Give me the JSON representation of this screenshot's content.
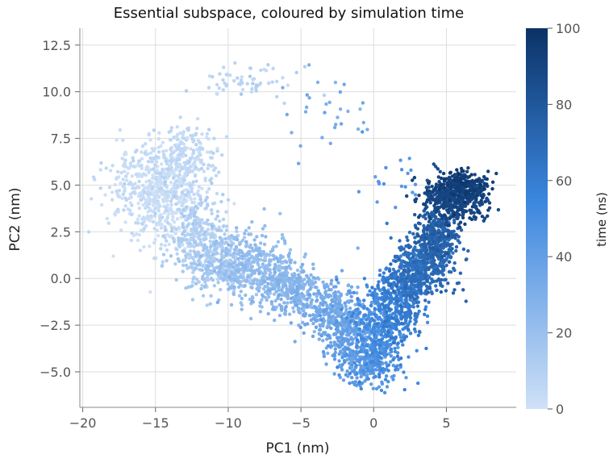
{
  "chart_data": {
    "type": "scatter",
    "title": "Essential subspace, coloured by simulation time",
    "xlabel": "PC1 (nm)",
    "ylabel": "PC2 (nm)",
    "xlim": [
      -20.2,
      9.8
    ],
    "ylim": [
      -6.9,
      13.4
    ],
    "x_ticks": [
      -20,
      -15,
      -10,
      -5,
      0,
      5
    ],
    "x_tick_labels": [
      "−20",
      "−15",
      "−10",
      "−5",
      "0",
      "5"
    ],
    "y_ticks": [
      -5.0,
      -2.5,
      0.0,
      2.5,
      5.0,
      7.5,
      10.0,
      12.5
    ],
    "y_tick_labels": [
      "−5.0",
      "−2.5",
      "0.0",
      "2.5",
      "5.0",
      "7.5",
      "10.0",
      "12.5"
    ],
    "grid": true,
    "colorbar": {
      "label": "time (ns)",
      "range": [
        0,
        100
      ],
      "ticks": [
        0,
        20,
        40,
        60,
        80,
        100
      ],
      "tick_labels": [
        "0",
        "20",
        "40",
        "60",
        "80",
        "100"
      ],
      "color_low": "#cfe1f7",
      "color_high": "#0b3266"
    },
    "clusters": [
      {
        "x": -14.5,
        "y": 4.5,
        "sx": 1.5,
        "sy": 1.3,
        "t": 2,
        "n": 500
      },
      {
        "x": -13.0,
        "y": 6.5,
        "sx": 1.1,
        "sy": 0.9,
        "t": 5,
        "n": 220
      },
      {
        "x": -16.8,
        "y": 5.2,
        "sx": 1.1,
        "sy": 1.0,
        "t": 4,
        "n": 90
      },
      {
        "x": -12.0,
        "y": 2.2,
        "sx": 1.0,
        "sy": 1.0,
        "t": 10,
        "n": 260
      },
      {
        "x": -10.5,
        "y": 0.8,
        "sx": 1.2,
        "sy": 0.8,
        "t": 15,
        "n": 300
      },
      {
        "x": -8.0,
        "y": 0.5,
        "sx": 1.3,
        "sy": 0.9,
        "t": 22,
        "n": 380
      },
      {
        "x": -5.5,
        "y": -0.6,
        "sx": 1.0,
        "sy": 0.7,
        "t": 27,
        "n": 240
      },
      {
        "x": -8.5,
        "y": 10.5,
        "sx": 1.6,
        "sy": 0.4,
        "t": 8,
        "n": 60
      },
      {
        "x": -3.0,
        "y": -1.8,
        "sx": 1.0,
        "sy": 0.8,
        "t": 33,
        "n": 280
      },
      {
        "x": -1.5,
        "y": -3.0,
        "sx": 0.9,
        "sy": 0.9,
        "t": 40,
        "n": 260
      },
      {
        "x": -0.5,
        "y": -4.5,
        "sx": 0.9,
        "sy": 0.6,
        "t": 43,
        "n": 200
      },
      {
        "x": 0.5,
        "y": -2.8,
        "sx": 0.9,
        "sy": 1.3,
        "t": 52,
        "n": 380
      },
      {
        "x": 1.8,
        "y": -1.2,
        "sx": 0.8,
        "sy": 1.0,
        "t": 60,
        "n": 300
      },
      {
        "x": 2.8,
        "y": 0.4,
        "sx": 0.8,
        "sy": 0.8,
        "t": 67,
        "n": 320
      },
      {
        "x": 4.3,
        "y": 1.2,
        "sx": 0.8,
        "sy": 0.8,
        "t": 72,
        "n": 260
      },
      {
        "x": 4.3,
        "y": 2.6,
        "sx": 0.7,
        "sy": 0.6,
        "t": 77,
        "n": 180
      },
      {
        "x": 5.5,
        "y": 4.3,
        "sx": 1.1,
        "sy": 0.6,
        "t": 90,
        "n": 460
      },
      {
        "x": 6.2,
        "y": 5.1,
        "sx": 0.9,
        "sy": 0.3,
        "t": 94,
        "n": 160
      },
      {
        "x": -3.5,
        "y": 9.0,
        "sx": 1.5,
        "sy": 1.6,
        "t": 32,
        "n": 30
      },
      {
        "x": 1.0,
        "y": 5.0,
        "sx": 0.9,
        "sy": 0.8,
        "t": 45,
        "n": 20
      }
    ]
  }
}
